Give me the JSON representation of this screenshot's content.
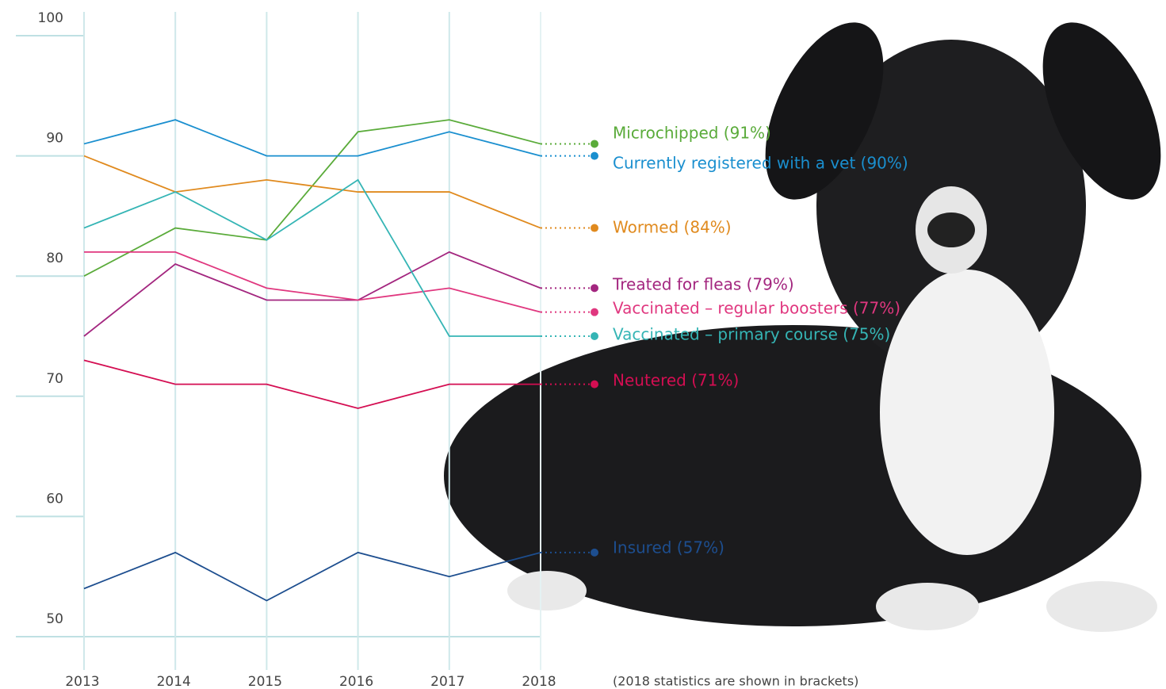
{
  "chart_data": {
    "type": "line",
    "x": [
      "2013",
      "2014",
      "2015",
      "2016",
      "2017",
      "2018"
    ],
    "ylim": [
      50,
      100
    ],
    "yticks": [
      50,
      60,
      70,
      80,
      90,
      100
    ],
    "series": [
      {
        "name": "Microchipped (91%)",
        "color": "#5aab3a",
        "values": [
          80,
          84,
          83,
          92,
          93,
          91
        ]
      },
      {
        "name": "Currently registered with a vet (90%)",
        "color": "#1a8fcf",
        "values": [
          91,
          93,
          90,
          90,
          92,
          90
        ]
      },
      {
        "name": "Wormed (84%)",
        "color": "#e08a1e",
        "values": [
          90,
          87,
          88,
          87,
          87,
          84
        ]
      },
      {
        "name": "Treated for fleas (79%)",
        "color": "#a3267f",
        "values": [
          75,
          81,
          78,
          78,
          82,
          79
        ]
      },
      {
        "name": "Vaccinated – regular boosters (77%)",
        "color": "#e0377f",
        "values": [
          82,
          82,
          79,
          78,
          79,
          77
        ]
      },
      {
        "name": "Vaccinated – primary course (75%)",
        "color": "#35b5b5",
        "values": [
          84,
          87,
          83,
          88,
          75,
          75
        ]
      },
      {
        "name": "Neutered (71%)",
        "color": "#d40e52",
        "values": [
          73,
          71,
          71,
          69,
          71,
          71
        ]
      },
      {
        "name": "Insured (57%)",
        "color": "#1d4e8f",
        "values": [
          54,
          57,
          53,
          57,
          55,
          57
        ]
      }
    ],
    "note": "(2018 statistics are shown in brackets)"
  }
}
